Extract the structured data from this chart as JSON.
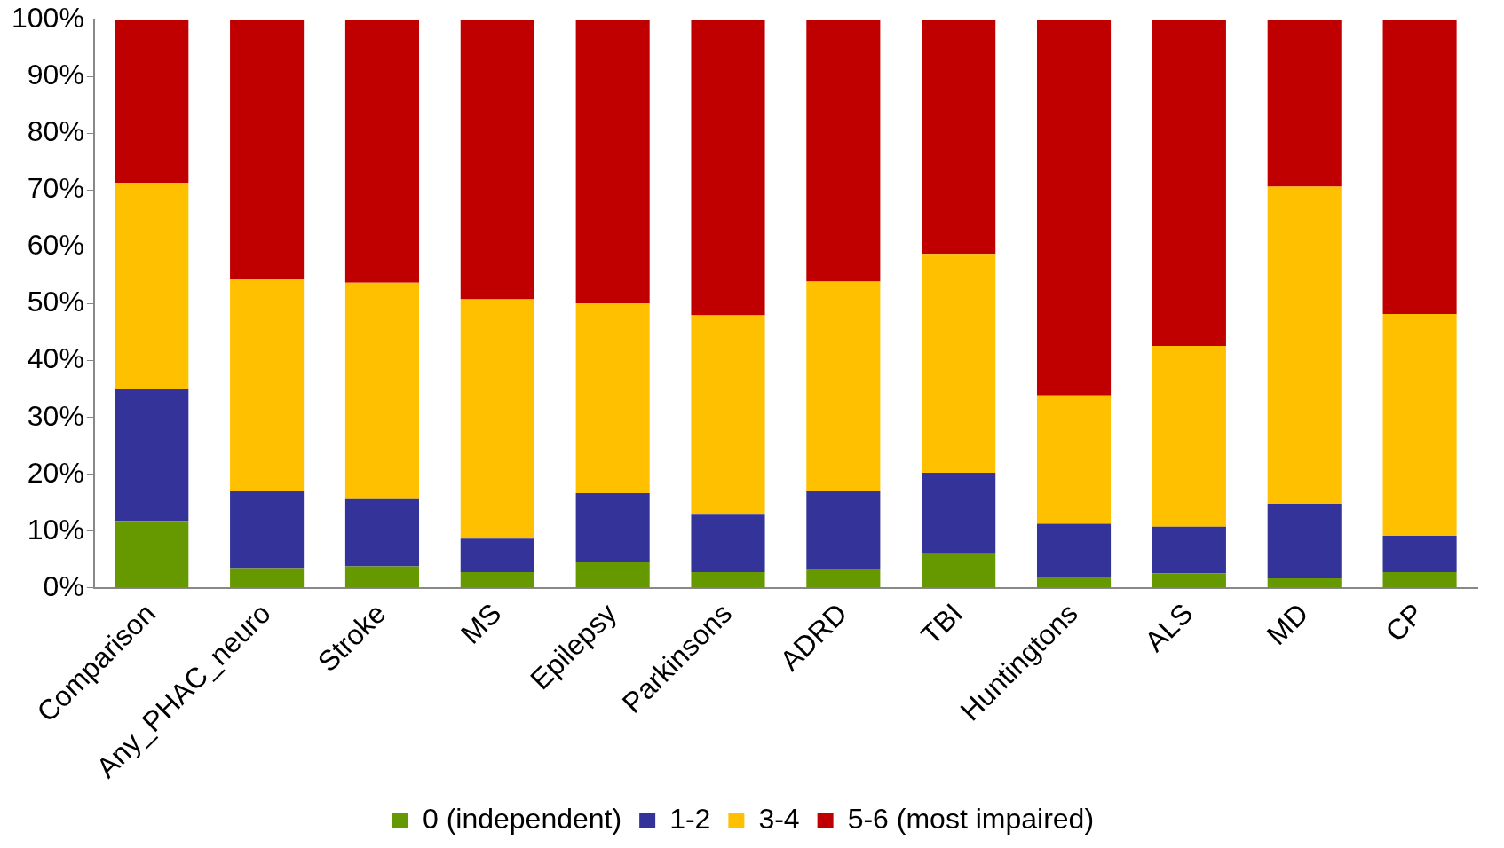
{
  "chart_data": {
    "type": "bar",
    "stacked": true,
    "legend": "bottom",
    "grid": false,
    "categories": [
      "Comparison",
      "Any_PHAC_neuro",
      "Stroke",
      "MS",
      "Epilepsy",
      "Parkinsons",
      "ADRD",
      "TBI",
      "Huntingtons",
      "ALS",
      "MD",
      "CP"
    ],
    "series": [
      {
        "name": "0 (independent)",
        "color": "#669900",
        "values": [
          11.8,
          3.5,
          3.8,
          2.8,
          4.5,
          2.8,
          3.3,
          6.1,
          1.9,
          2.6,
          1.7,
          2.8
        ]
      },
      {
        "name": "1-2",
        "color": "#333399",
        "values": [
          23.3,
          13.5,
          12.0,
          5.9,
          12.2,
          10.1,
          13.7,
          14.2,
          9.4,
          8.2,
          13.1,
          6.4
        ]
      },
      {
        "name": "3-4",
        "color": "#ffc000",
        "values": [
          36.2,
          37.3,
          37.9,
          42.1,
          33.4,
          35.1,
          36.9,
          38.5,
          22.6,
          31.8,
          55.8,
          39.0
        ]
      },
      {
        "name": "5-6 (most impaired)",
        "color": "#c00000",
        "values": [
          28.7,
          45.7,
          46.3,
          49.2,
          49.9,
          52.0,
          46.1,
          41.2,
          66.1,
          57.4,
          29.4,
          51.8
        ]
      }
    ],
    "ylim": [
      0,
      100
    ],
    "yticks": [
      {
        "value": 0,
        "label": "0%"
      },
      {
        "value": 10,
        "label": "10%"
      },
      {
        "value": 20,
        "label": "20%"
      },
      {
        "value": 30,
        "label": "30%"
      },
      {
        "value": 40,
        "label": "40%"
      },
      {
        "value": 50,
        "label": "50%"
      },
      {
        "value": 60,
        "label": "60%"
      },
      {
        "value": 70,
        "label": "70%"
      },
      {
        "value": 80,
        "label": "80%"
      },
      {
        "value": 90,
        "label": "90%"
      },
      {
        "value": 100,
        "label": "100%"
      }
    ]
  }
}
